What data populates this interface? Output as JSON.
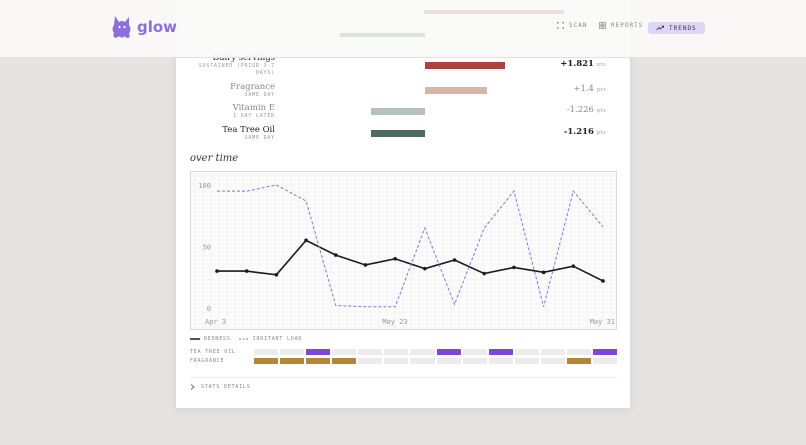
{
  "header": {
    "logo_text": "glow",
    "nav": [
      {
        "label": "SCAN",
        "active": false
      },
      {
        "label": "REPORTS",
        "active": false
      },
      {
        "label": "TRENDS",
        "active": true
      }
    ]
  },
  "factors": [
    {
      "name": "Dairy servings",
      "sub": "SUSTAINED (PRIOR 3-7 DAYS)",
      "value": "+1.821",
      "unit": "pts",
      "color": "#a5473a",
      "bold": true,
      "effect": 1.821
    },
    {
      "name": "Fragrance",
      "sub": "SAME DAY",
      "value": "+1.4",
      "unit": "pts",
      "color": "#d9b4ab",
      "bold": false,
      "effect": 1.4
    },
    {
      "name": "Vitamin E",
      "sub": "1 DAY LATER",
      "value": "-1.226",
      "unit": "pts",
      "color": "#b5c1bd",
      "bold": false,
      "effect": -1.226
    },
    {
      "name": "Tea Tree Oil",
      "sub": "SAME DAY",
      "value": "-1.216",
      "unit": "pts",
      "color": "#4e6b62",
      "bold": true,
      "effect": -1.216
    }
  ],
  "section_title": "over time",
  "chart_data": {
    "type": "line",
    "y_ticks": [
      "100",
      "50",
      "0"
    ],
    "ylim": [
      0,
      100
    ],
    "x_tick_labels": [
      "Apr 3",
      "May 23",
      "May 31"
    ],
    "series": [
      {
        "name": "REDNESS",
        "style": "solid",
        "color": "#1a1a1a",
        "values": [
          30,
          30,
          27,
          55,
          43,
          35,
          40,
          32,
          39,
          28,
          33,
          29,
          34,
          22
        ]
      },
      {
        "name": "IRRITANT LOAD",
        "style": "dashed",
        "color": "#8b73d6",
        "values": [
          95,
          95,
          100,
          87,
          2,
          1,
          1,
          65,
          3,
          65,
          95,
          1,
          95,
          66
        ]
      }
    ]
  },
  "tracks": [
    {
      "label": "TEA TREE OIL",
      "color": "#7b49d6",
      "cells": [
        0,
        0,
        1,
        0,
        0,
        0,
        0,
        1,
        0,
        1,
        0,
        0,
        0,
        1
      ]
    },
    {
      "label": "FRAGRANCE",
      "color": "#b5853a",
      "cells": [
        1,
        1,
        1,
        1,
        0,
        0,
        0,
        0,
        0,
        0,
        0,
        0,
        1,
        0
      ]
    }
  ],
  "stats_label": "STATS DETAILS"
}
